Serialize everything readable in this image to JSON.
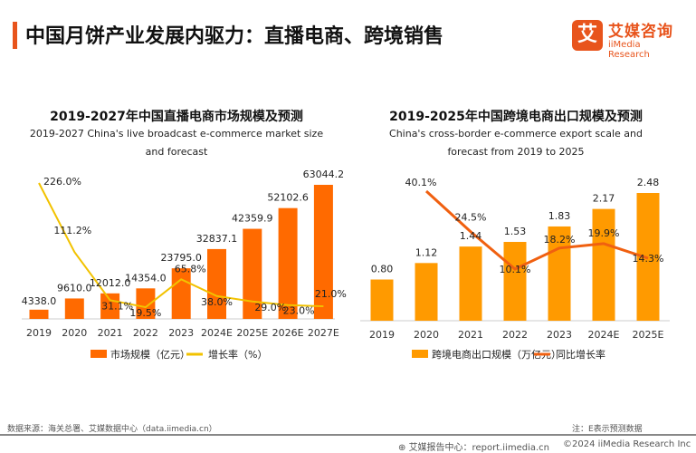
{
  "header": {
    "title": "中国月饼产业发展内驱力：直播电商、跨境销售",
    "logo_glyph": "艾",
    "logo_cn": "艾媒咨询",
    "logo_en": "iiMedia Research",
    "accent": "#e8541c"
  },
  "chart_data": [
    {
      "type": "bar",
      "title": "2019-2027年中国直播电商市场规模及预测",
      "subtitle": "2019-2027 China's live broadcast e-commerce market size and forecast",
      "categories": [
        "2019",
        "2020",
        "2021",
        "2022",
        "2023",
        "2024E",
        "2025E",
        "2026E",
        "2027E"
      ],
      "series": [
        {
          "name": "市场规模（亿元）",
          "type": "bar",
          "color": "#ff6a00",
          "values": [
            4338.0,
            9610.0,
            12012.0,
            14354.0,
            23795.0,
            32837.1,
            42359.9,
            52102.6,
            63044.2
          ],
          "labels": [
            "4338.0",
            "9610.0",
            "12012.0",
            "14354.0",
            "23795.0",
            "32837.1",
            "42359.9",
            "52102.6",
            "63044.2"
          ]
        },
        {
          "name": "增长率（%）",
          "type": "line",
          "color": "#f2c200",
          "values": [
            226.0,
            111.2,
            31.1,
            19.5,
            65.8,
            38.0,
            29.0,
            23.0,
            21.0
          ],
          "labels": [
            "226.0%",
            "111.2%",
            "31.1%",
            "19.5%",
            "65.8%",
            "38.0%",
            "29.0%",
            "23.0%",
            "21.0%"
          ]
        }
      ],
      "legend": "bottom"
    },
    {
      "type": "bar",
      "title": "2019-2025年中国跨境电商出口规模及预测",
      "subtitle": "China's cross-border e-commerce export scale and forecast from 2019 to 2025",
      "categories": [
        "2019",
        "2020",
        "2021",
        "2022",
        "2023",
        "2024E",
        "2025E"
      ],
      "series": [
        {
          "name": "跨境电商出口规模（万亿元）",
          "type": "bar",
          "color": "#ff9a00",
          "values": [
            0.8,
            1.12,
            1.44,
            1.53,
            1.83,
            2.17,
            2.48
          ],
          "labels": [
            "0.80",
            "1.12",
            "1.44",
            "1.53",
            "1.83",
            "2.17",
            "2.48"
          ]
        },
        {
          "name": "同比增长率",
          "type": "line",
          "color": "#f06010",
          "values": [
            null,
            40.1,
            24.5,
            10.1,
            18.2,
            19.9,
            14.3
          ],
          "labels": [
            "",
            "40.1%",
            "24.5%",
            "10.1%",
            "18.2%",
            "19.9%",
            "14.3%"
          ]
        }
      ],
      "legend": "bottom"
    }
  ],
  "footer": {
    "source": "数据来源：海关总署、艾媒数据中心（data.iimedia.cn）",
    "note": "注：E表示预测数据",
    "report": "艾媒报告中心：report.iimedia.cn",
    "copyright": "©2024  iiMedia Research Inc"
  }
}
